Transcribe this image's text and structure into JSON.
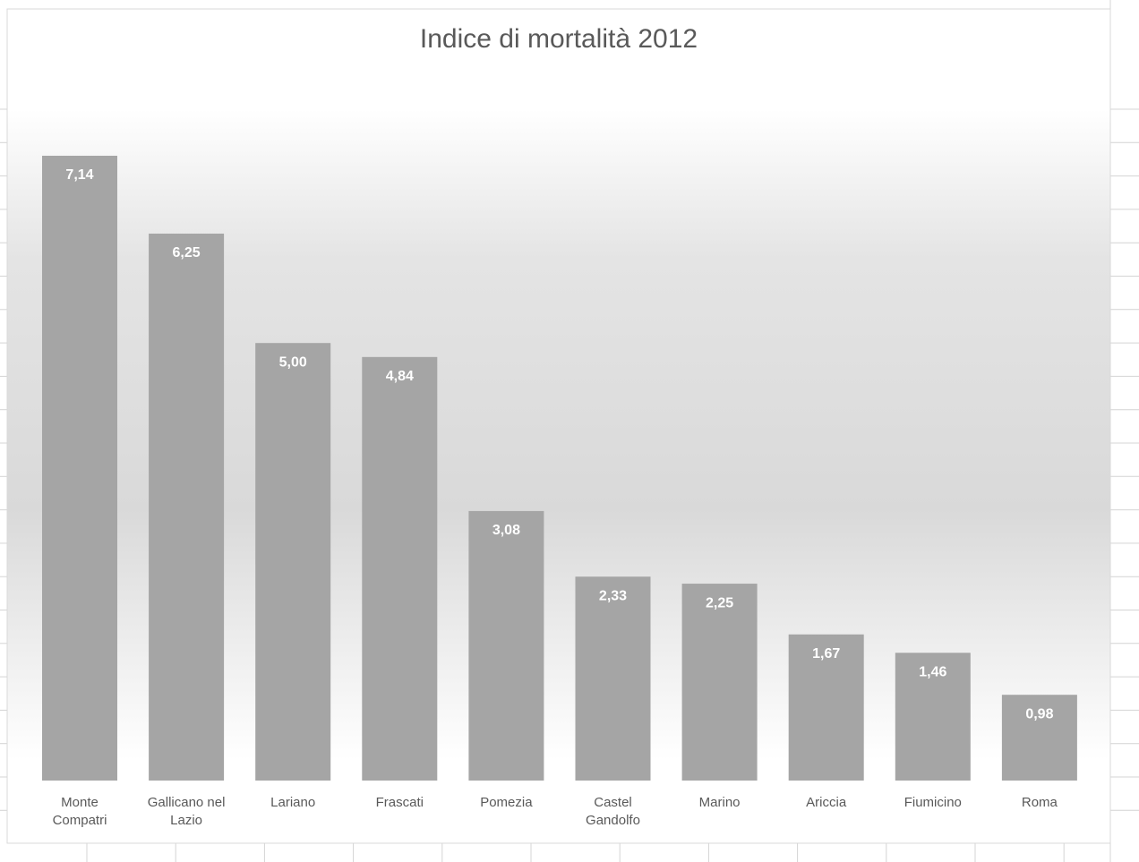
{
  "chart_data": {
    "type": "bar",
    "title": "Indice di mortalità 2012",
    "categories": [
      "Monte Compatri",
      "Gallicano nel Lazio",
      "Lariano",
      "Frascati",
      "Pomezia",
      "Castel Gandolfo",
      "Marino",
      "Ariccia",
      "Fiumicino",
      "Roma"
    ],
    "values": [
      7.14,
      6.25,
      5.0,
      4.84,
      3.08,
      2.33,
      2.25,
      1.67,
      1.46,
      0.98
    ],
    "value_labels": [
      "7,14",
      "6,25",
      "5,00",
      "4,84",
      "3,08",
      "2,33",
      "2,25",
      "1,67",
      "1,46",
      "0,98"
    ],
    "color": "#a5a5a5"
  }
}
